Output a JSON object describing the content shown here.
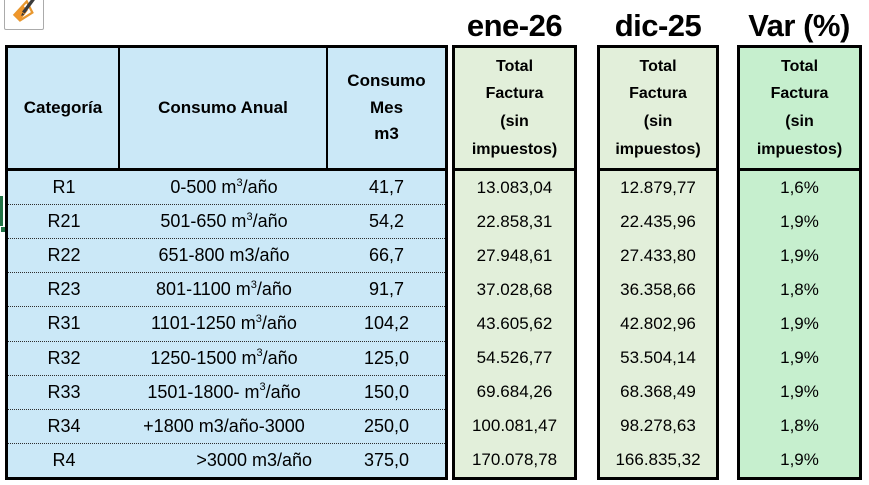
{
  "period_titles": {
    "ene": "ene-26",
    "dic": "dic-25",
    "var": "Var (%)"
  },
  "table": {
    "headers": {
      "categoria": "Categoría",
      "consumo_anual": "Consumo Anual",
      "consumo_mes": "Consumo\nMes\nm3",
      "total_factura": "Total\nFactura\n(sin\nimpuestos)"
    },
    "rows": [
      {
        "categoria": "R1",
        "consumo": [
          {
            "t": "0-500 m"
          },
          {
            "t": "3",
            "sup": true
          },
          {
            "t": "/año"
          }
        ],
        "mes": "41,7",
        "ene": "13.083,04",
        "dic": "12.879,77",
        "var": "1,6%"
      },
      {
        "categoria": "R21",
        "consumo": [
          {
            "t": "501-650 m"
          },
          {
            "t": "3",
            "sup": true
          },
          {
            "t": "/año"
          }
        ],
        "mes": "54,2",
        "ene": "22.858,31",
        "dic": "22.435,96",
        "var": "1,9%"
      },
      {
        "categoria": "R22",
        "consumo": [
          {
            "t": "651-800 m3/año"
          }
        ],
        "mes": "66,7",
        "ene": "27.948,61",
        "dic": "27.433,80",
        "var": "1,9%"
      },
      {
        "categoria": "R23",
        "consumo": [
          {
            "t": "801-1100 m"
          },
          {
            "t": "3",
            "sup": true
          },
          {
            "t": "/año"
          }
        ],
        "mes": "91,7",
        "ene": "37.028,68",
        "dic": "36.358,66",
        "var": "1,8%"
      },
      {
        "categoria": "R31",
        "consumo": [
          {
            "t": "1101-1250 m"
          },
          {
            "t": "3",
            "sup": true
          },
          {
            "t": "/año"
          }
        ],
        "mes": "104,2",
        "ene": "43.605,62",
        "dic": "42.802,96",
        "var": "1,9%"
      },
      {
        "categoria": "R32",
        "consumo": [
          {
            "t": "1250-1500 m"
          },
          {
            "t": "3",
            "sup": true
          },
          {
            "t": "/año"
          }
        ],
        "mes": "125,0",
        "ene": "54.526,77",
        "dic": "53.504,14",
        "var": "1,9%"
      },
      {
        "categoria": "R33",
        "consumo": [
          {
            "t": "1501-1800- m"
          },
          {
            "t": "3",
            "sup": true
          },
          {
            "t": "/año"
          }
        ],
        "mes": "150,0",
        "ene": "69.684,26",
        "dic": "68.368,49",
        "var": "1,9%"
      },
      {
        "categoria": "R34",
        "consumo": [
          {
            "t": "+1800 m3/año-3000"
          }
        ],
        "mes": "250,0",
        "ene": "100.081,47",
        "dic": "98.278,63",
        "var": "1,8%"
      },
      {
        "categoria": "R4",
        "consumo": [
          {
            "t": ">3000 m3/año"
          }
        ],
        "align": "right",
        "mes": "375,0",
        "ene": "170.078,78",
        "dic": "166.835,32",
        "var": "1,9%"
      }
    ]
  },
  "icons": {
    "smart_tag": "format-painter-icon",
    "fill_handle": "fill-handle"
  },
  "colors": {
    "cell_blue": "#cbe8f7",
    "green_light": "#e2efda",
    "green_mint": "#c6efce",
    "selection_green": "#217346",
    "icon_orange": "#f0962a",
    "border_black": "#000000"
  }
}
